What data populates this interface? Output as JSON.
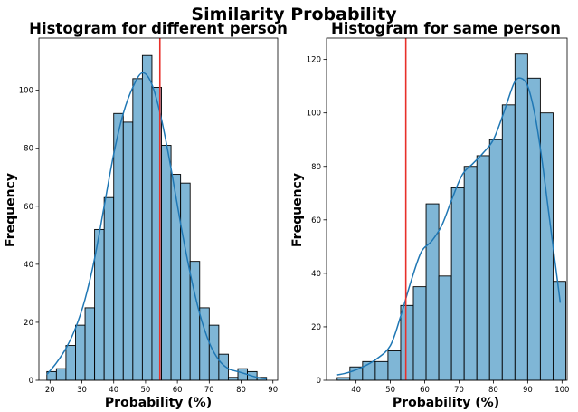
{
  "suptitle": "Similarity Probability",
  "colors": {
    "bar": "#7fb6d6",
    "bar_edge": "#000000",
    "kde": "#1f77b4",
    "threshold": "#e8302a"
  },
  "chart_data": [
    {
      "type": "bar",
      "subtype": "histogram-with-kde",
      "title": "Histogram for different person",
      "xlabel": "Probability (%)",
      "ylabel": "Frequency",
      "xlim": [
        16.5,
        91.5
      ],
      "ylim": [
        0,
        118
      ],
      "xticks": [
        20,
        30,
        40,
        50,
        60,
        70,
        80,
        90
      ],
      "yticks": [
        0,
        20,
        40,
        60,
        80,
        100
      ],
      "threshold": 54.5,
      "grid": false,
      "bin_edges": [
        19.0,
        22.0,
        25.0,
        28.0,
        31.0,
        34.0,
        37.0,
        40.0,
        43.0,
        46.0,
        49.0,
        52.0,
        55.0,
        58.0,
        61.0,
        64.0,
        67.0,
        70.0,
        73.0,
        76.0,
        79.0,
        82.0,
        85.0,
        88.0,
        91.0
      ],
      "values": [
        3,
        4,
        12,
        19,
        25,
        52,
        63,
        92,
        89,
        104,
        112,
        101,
        81,
        71,
        68,
        41,
        25,
        19,
        9,
        1,
        4,
        3,
        1,
        0
      ],
      "kde": {
        "x": [
          19,
          22,
          25,
          28,
          31,
          34,
          37,
          40,
          43,
          46,
          49,
          52,
          55,
          58,
          61,
          64,
          67,
          70,
          73,
          76,
          79,
          82,
          85,
          88
        ],
        "y": [
          2,
          6,
          11,
          18,
          28,
          42,
          60,
          78,
          92,
          101,
          106,
          102,
          90,
          73,
          54,
          37,
          23,
          13,
          7,
          4,
          3,
          2,
          1,
          0.5
        ]
      }
    },
    {
      "type": "bar",
      "subtype": "histogram-with-kde",
      "title": "Histogram for same person",
      "xlabel": "Probability (%)",
      "ylabel": "Frequency",
      "xlim": [
        31.4,
        101.5
      ],
      "ylim": [
        0,
        128
      ],
      "xticks": [
        40,
        50,
        60,
        70,
        80,
        90,
        100
      ],
      "yticks": [
        0,
        20,
        40,
        60,
        80,
        100,
        120
      ],
      "threshold": 54.5,
      "grid": false,
      "bin_edges": [
        34.5,
        38.2,
        41.9,
        45.6,
        49.3,
        53.0,
        56.7,
        60.4,
        64.1,
        67.8,
        71.5,
        75.2,
        78.9,
        82.6,
        86.3,
        90.0,
        93.7,
        97.4,
        101.1
      ],
      "values": [
        1,
        5,
        7,
        7,
        11,
        28,
        35,
        66,
        39,
        72,
        80,
        84,
        90,
        103,
        122,
        113,
        100,
        37
      ],
      "kde": {
        "x": [
          34.5,
          38,
          42,
          46,
          50,
          53,
          56,
          59,
          62,
          65,
          68,
          71,
          74,
          77,
          80,
          83,
          86,
          88,
          90,
          92,
          94,
          96,
          98,
          99.5
        ],
        "y": [
          2,
          3,
          5,
          8,
          13,
          24,
          37,
          48,
          52,
          58,
          68,
          77,
          81,
          85,
          90,
          100,
          111,
          113,
          110,
          100,
          84,
          64,
          44,
          29
        ]
      }
    }
  ]
}
